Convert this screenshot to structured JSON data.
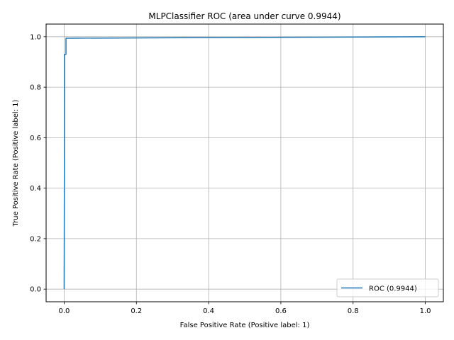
{
  "chart_data": {
    "type": "line",
    "title": "MLPClassifier ROC (area under curve 0.9944)",
    "xlabel": "False Positive Rate (Positive label: 1)",
    "ylabel": "True Positive Rate (Positive label: 1)",
    "xlim": [
      -0.05,
      1.05
    ],
    "ylim": [
      -0.05,
      1.05
    ],
    "xticks": [
      0.0,
      0.2,
      0.4,
      0.6,
      0.8,
      1.0
    ],
    "yticks": [
      0.0,
      0.2,
      0.4,
      0.6,
      0.8,
      1.0
    ],
    "xtick_labels": [
      "0.0",
      "0.2",
      "0.4",
      "0.6",
      "0.8",
      "1.0"
    ],
    "ytick_labels": [
      "0.0",
      "0.2",
      "0.4",
      "0.6",
      "0.8",
      "1.0"
    ],
    "grid": true,
    "legend_position": "bottom-right",
    "series": [
      {
        "name": "ROC (0.9944)",
        "color": "#1f77b4",
        "x": [
          0.0,
          0.001,
          0.001,
          0.005,
          0.005,
          1.0
        ],
        "y": [
          0.0,
          0.8,
          0.93,
          0.93,
          0.994,
          1.0
        ]
      }
    ]
  }
}
